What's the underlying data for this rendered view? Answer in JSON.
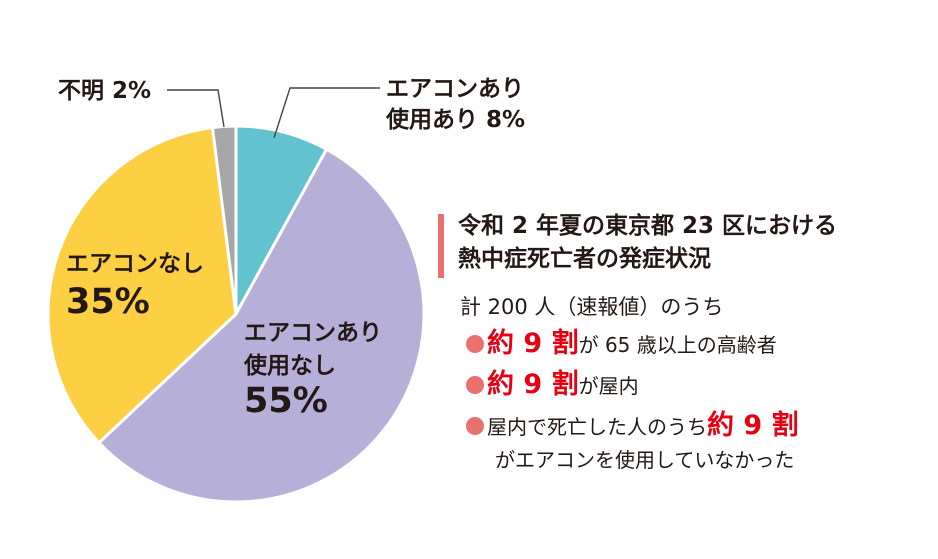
{
  "chart_data": {
    "type": "pie",
    "slices": [
      {
        "label_line1": "エアコンあり",
        "label_line2": "使用あり 8%",
        "value": 8,
        "color": "#62c2cf"
      },
      {
        "label_line1": "エアコンあり",
        "label_line2": "使用なし",
        "value_text": "55%",
        "value": 55,
        "color": "#b6b0d8"
      },
      {
        "label_line1": "エアコンなし",
        "value_text": "35%",
        "value": 35,
        "color": "#fcd042"
      },
      {
        "label_line1": "不明 2%",
        "value": 2,
        "color": "#a6a6a6"
      }
    ],
    "legend": "none"
  },
  "info": {
    "title_line1": "令和 2 年夏の東京都 23 区における",
    "title_line2": "熱中症死亡者の発症状況",
    "subtitle": "計 200 人（速報値）のうち",
    "bullets": [
      {
        "emph": "約 9 割",
        "rest": "が 65 歳以上の高齢者"
      },
      {
        "emph": "約 9 割",
        "rest": "が屋内"
      },
      {
        "pre": "屋内で死亡した人のうち",
        "emph": "約 9 割",
        "cont": "がエアコンを使用していなかった"
      }
    ]
  },
  "colors": {
    "accent_bar": "#e9706f",
    "emphasis_text": "#e60012",
    "text": "#231815"
  }
}
